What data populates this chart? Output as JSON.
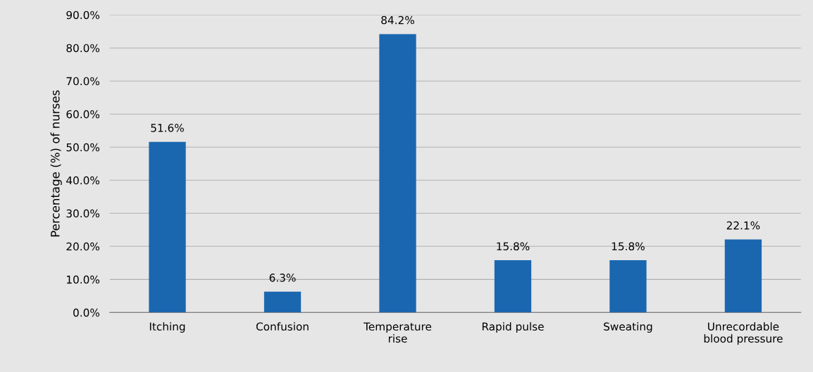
{
  "chart_data": {
    "type": "bar",
    "ylabel": "Percentage (%) of nurses",
    "categories": [
      "Itching",
      "Confusion",
      "Temperature\nrise",
      "Rapid pulse",
      "Sweating",
      "Unrecordable\nblood pressure"
    ],
    "values": [
      51.6,
      6.3,
      84.2,
      15.8,
      15.8,
      22.1
    ],
    "value_labels": [
      "51.6%",
      "6.3%",
      "84.2%",
      "15.8%",
      "15.8%",
      "22.1%"
    ],
    "color": "#1a67b0",
    "ylim": [
      0,
      90
    ],
    "yticks": [
      {
        "value": 0,
        "label": "0.0%"
      },
      {
        "value": 10,
        "label": "10.0%"
      },
      {
        "value": 20,
        "label": "20.0%"
      },
      {
        "value": 30,
        "label": "30.0%"
      },
      {
        "value": 40,
        "label": "40.0%"
      },
      {
        "value": 50,
        "label": "50.0%"
      },
      {
        "value": 60,
        "label": "60.0%"
      },
      {
        "value": 70,
        "label": "70.0%"
      },
      {
        "value": 80,
        "label": "80.0%"
      },
      {
        "value": 90,
        "label": "90.0%"
      }
    ],
    "grid": "y"
  }
}
